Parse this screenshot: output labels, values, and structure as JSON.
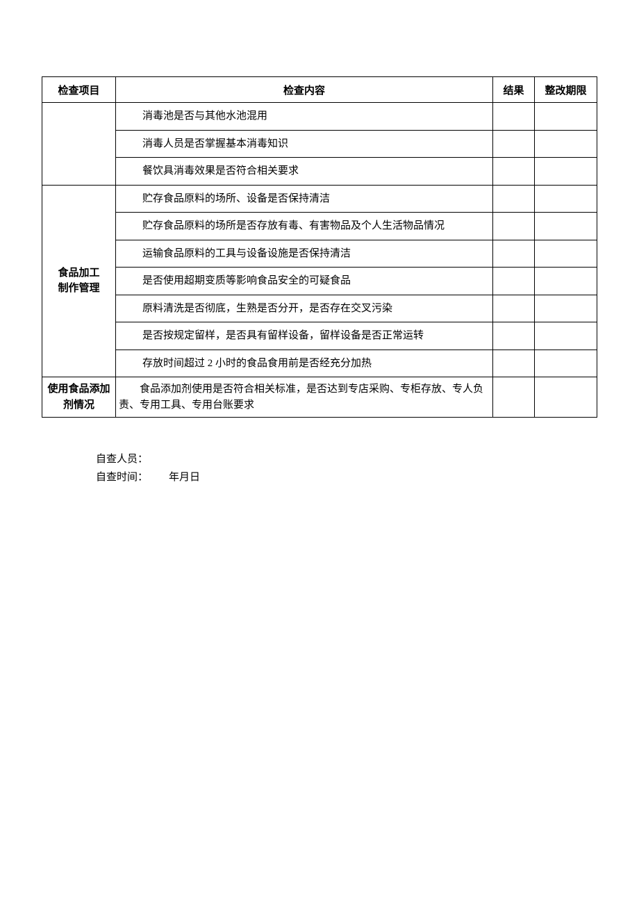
{
  "table": {
    "headers": {
      "col1": "检查项目",
      "col2": "检查内容",
      "col3": "结果",
      "col4": "整改期限"
    },
    "group1": {
      "rows": [
        "消毒池是否与其他水池混用",
        "消毒人员是否掌握基本消毒知识",
        "餐饮具消毒效果是否符合相关要求"
      ]
    },
    "group2": {
      "category_line1": "食品加工",
      "category_line2": "制作管理",
      "rows": [
        "贮存食品原料的场所、设备是否保持清洁",
        "贮存食品原料的场所是否存放有毒、有害物品及个人生活物品情况",
        "运输食品原料的工具与设备设施是否保持清洁",
        "是否使用超期变质等影响食品安全的可疑食品",
        "原料清洗是否彻底，生熟是否分开，是否存在交叉污染",
        "是否按规定留样，是否具有留样设备，留样设备是否正常运转",
        "存放时间超过 2 小时的食品食用前是否经充分加热"
      ]
    },
    "group3": {
      "category_line1": "使用食品添加",
      "category_line2": "剂情况",
      "content": "　　食品添加剂使用是否符合相关标准，是否达到专店采购、专柜存放、专人负责、专用工具、专用台账要求"
    }
  },
  "footer": {
    "staff_label": "自查人员：",
    "time_label": "自查时间：",
    "date_format": "年月日"
  },
  "colors": {
    "text": "#000000",
    "background": "#ffffff",
    "border": "#000000"
  }
}
